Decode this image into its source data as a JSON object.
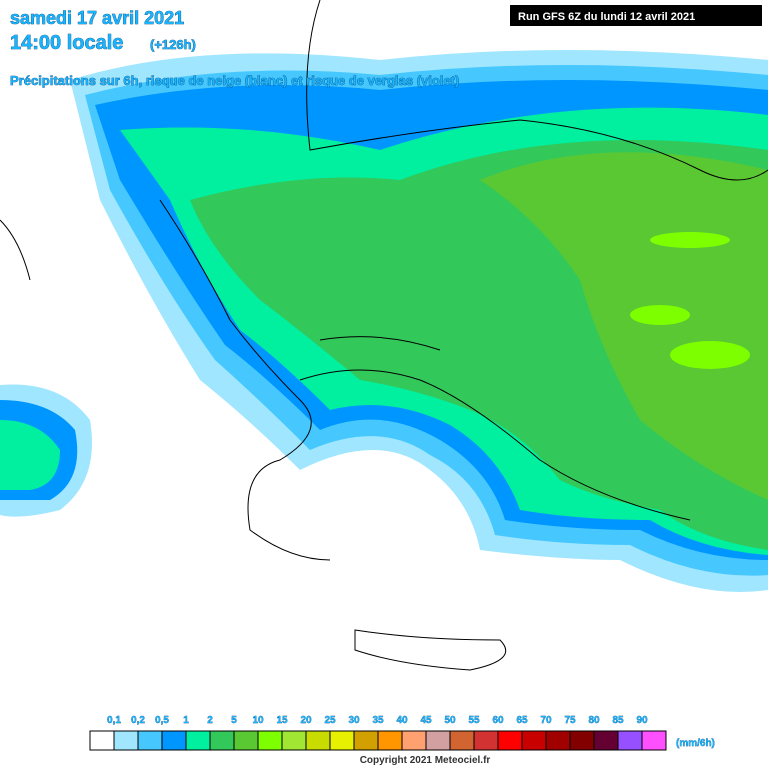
{
  "header": {
    "date": "samedi 17 avril 2021",
    "time": "14:00 locale",
    "lead": "(+126h)",
    "subtitle": "Précipitations sur 6h, risque de neige (blanc) et risque de verglas (violet)",
    "run": "Run GFS 6Z du lundi 12 avril 2021"
  },
  "legend": {
    "labels": [
      "0,1",
      "0,2",
      "0,5",
      "1",
      "2",
      "5",
      "10",
      "15",
      "20",
      "25",
      "30",
      "35",
      "40",
      "45",
      "50",
      "55",
      "60",
      "65",
      "70",
      "75",
      "80",
      "85",
      "90"
    ],
    "colors": [
      "#ffffff",
      "#a0e6ff",
      "#46c8ff",
      "#0096ff",
      "#00f0a0",
      "#32c85a",
      "#5ac832",
      "#7dff00",
      "#a0e632",
      "#c8dc00",
      "#e6f000",
      "#d2a000",
      "#ff9600",
      "#ffa070",
      "#d2a0a0",
      "#d26432",
      "#d23232",
      "#ff0000",
      "#c80000",
      "#a00000",
      "#820000",
      "#640032",
      "#9650ff",
      "#ff50ff"
    ],
    "unit": "(mm/6h)"
  },
  "footer": {
    "copyright": "Copyright 2021 Meteociel.fr"
  }
}
